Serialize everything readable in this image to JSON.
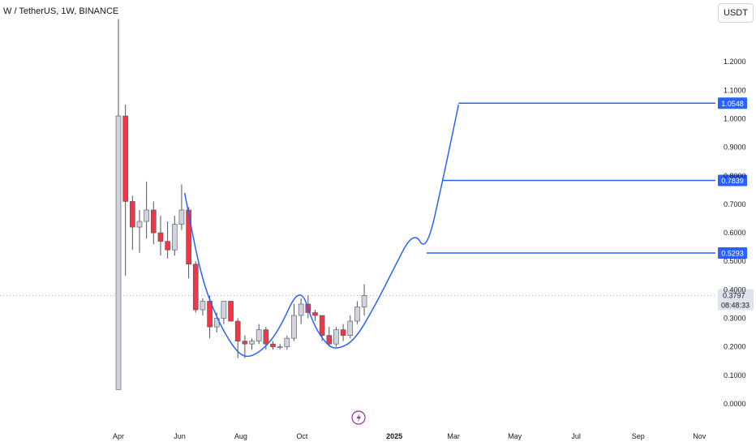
{
  "header": {
    "title": "W / TetherUS, 1W, BINANCE",
    "unit": "USDT"
  },
  "colors": {
    "up": "#d1d4dc",
    "up_border": "#50535e",
    "down": "#f23645",
    "down_border": "#50535e",
    "line": "#2962ff",
    "axis_text": "#131722",
    "lightning": "#9c27b0"
  },
  "icons": {
    "replay": "lightning-icon"
  },
  "chart_data": {
    "type": "candlestick",
    "title": "W / TetherUS, 1W, BINANCE",
    "ylim": [
      -0.02,
      1.36
    ],
    "y_ticks": [
      "1.2000",
      "1.1000",
      "1.0000",
      "0.9000",
      "0.8000",
      "0.7000",
      "0.6000",
      "0.5000",
      "0.4000",
      "0.3000",
      "0.2000",
      "0.1000",
      "0.0000"
    ],
    "y_tick_values": [
      1.2,
      1.1,
      1.0,
      0.9,
      0.8,
      0.7,
      0.6,
      0.5,
      0.4,
      0.3,
      0.2,
      0.1,
      0.0
    ],
    "x_ticks": [
      {
        "label": "Apr",
        "date": "2024-04-01"
      },
      {
        "label": "Jun",
        "date": "2024-06-01"
      },
      {
        "label": "Aug",
        "date": "2024-08-01"
      },
      {
        "label": "Oct",
        "date": "2024-10-01"
      },
      {
        "label": "2025",
        "date": "2025-01-01",
        "bold": true
      },
      {
        "label": "Mar",
        "date": "2025-03-01"
      },
      {
        "label": "May",
        "date": "2025-05-01"
      },
      {
        "label": "Jul",
        "date": "2025-07-01"
      },
      {
        "label": "Sep",
        "date": "2025-09-01"
      },
      {
        "label": "Nov",
        "date": "2025-11-01"
      }
    ],
    "candles": [
      {
        "date": "2024-04-01",
        "o": 0.05,
        "h": 1.35,
        "l": 0.05,
        "c": 1.01
      },
      {
        "date": "2024-04-08",
        "o": 1.01,
        "h": 1.05,
        "l": 0.45,
        "c": 0.71
      },
      {
        "date": "2024-04-15",
        "o": 0.71,
        "h": 0.73,
        "l": 0.54,
        "c": 0.62
      },
      {
        "date": "2024-04-22",
        "o": 0.62,
        "h": 0.68,
        "l": 0.53,
        "c": 0.64
      },
      {
        "date": "2024-04-29",
        "o": 0.64,
        "h": 0.78,
        "l": 0.58,
        "c": 0.68
      },
      {
        "date": "2024-05-06",
        "o": 0.68,
        "h": 0.71,
        "l": 0.56,
        "c": 0.6
      },
      {
        "date": "2024-05-13",
        "o": 0.6,
        "h": 0.66,
        "l": 0.52,
        "c": 0.57
      },
      {
        "date": "2024-05-20",
        "o": 0.57,
        "h": 0.64,
        "l": 0.51,
        "c": 0.54
      },
      {
        "date": "2024-05-27",
        "o": 0.54,
        "h": 0.66,
        "l": 0.52,
        "c": 0.63
      },
      {
        "date": "2024-06-03",
        "o": 0.63,
        "h": 0.77,
        "l": 0.61,
        "c": 0.68
      },
      {
        "date": "2024-06-10",
        "o": 0.68,
        "h": 0.69,
        "l": 0.44,
        "c": 0.49
      },
      {
        "date": "2024-06-17",
        "o": 0.49,
        "h": 0.5,
        "l": 0.32,
        "c": 0.33
      },
      {
        "date": "2024-06-24",
        "o": 0.33,
        "h": 0.37,
        "l": 0.31,
        "c": 0.36
      },
      {
        "date": "2024-07-01",
        "o": 0.36,
        "h": 0.38,
        "l": 0.23,
        "c": 0.27
      },
      {
        "date": "2024-07-08",
        "o": 0.27,
        "h": 0.32,
        "l": 0.25,
        "c": 0.3
      },
      {
        "date": "2024-07-15",
        "o": 0.3,
        "h": 0.36,
        "l": 0.28,
        "c": 0.36
      },
      {
        "date": "2024-07-22",
        "o": 0.36,
        "h": 0.36,
        "l": 0.29,
        "c": 0.29
      },
      {
        "date": "2024-07-29",
        "o": 0.29,
        "h": 0.3,
        "l": 0.16,
        "c": 0.22
      },
      {
        "date": "2024-08-05",
        "o": 0.22,
        "h": 0.24,
        "l": 0.16,
        "c": 0.21
      },
      {
        "date": "2024-08-12",
        "o": 0.21,
        "h": 0.23,
        "l": 0.19,
        "c": 0.22
      },
      {
        "date": "2024-08-19",
        "o": 0.22,
        "h": 0.28,
        "l": 0.21,
        "c": 0.26
      },
      {
        "date": "2024-08-26",
        "o": 0.26,
        "h": 0.27,
        "l": 0.19,
        "c": 0.21
      },
      {
        "date": "2024-09-02",
        "o": 0.21,
        "h": 0.22,
        "l": 0.19,
        "c": 0.2
      },
      {
        "date": "2024-09-09",
        "o": 0.2,
        "h": 0.21,
        "l": 0.19,
        "c": 0.2
      },
      {
        "date": "2024-09-16",
        "o": 0.2,
        "h": 0.24,
        "l": 0.19,
        "c": 0.23
      },
      {
        "date": "2024-09-23",
        "o": 0.23,
        "h": 0.35,
        "l": 0.22,
        "c": 0.31
      },
      {
        "date": "2024-09-30",
        "o": 0.31,
        "h": 0.37,
        "l": 0.28,
        "c": 0.35
      },
      {
        "date": "2024-10-07",
        "o": 0.35,
        "h": 0.38,
        "l": 0.3,
        "c": 0.32
      },
      {
        "date": "2024-10-14",
        "o": 0.32,
        "h": 0.33,
        "l": 0.29,
        "c": 0.31
      },
      {
        "date": "2024-10-21",
        "o": 0.31,
        "h": 0.31,
        "l": 0.22,
        "c": 0.24
      },
      {
        "date": "2024-10-28",
        "o": 0.24,
        "h": 0.27,
        "l": 0.2,
        "c": 0.21
      },
      {
        "date": "2024-11-04",
        "o": 0.21,
        "h": 0.27,
        "l": 0.2,
        "c": 0.26
      },
      {
        "date": "2024-11-11",
        "o": 0.26,
        "h": 0.28,
        "l": 0.22,
        "c": 0.24
      },
      {
        "date": "2024-11-18",
        "o": 0.24,
        "h": 0.31,
        "l": 0.23,
        "c": 0.29
      },
      {
        "date": "2024-11-25",
        "o": 0.29,
        "h": 0.36,
        "l": 0.28,
        "c": 0.34
      },
      {
        "date": "2024-12-02",
        "o": 0.34,
        "h": 0.42,
        "l": 0.31,
        "c": 0.38
      }
    ],
    "levels": [
      {
        "value": 1.0548,
        "label": "1.0548",
        "from_date": "2025-03-06"
      },
      {
        "value": 0.7839,
        "label": "0.7839",
        "from_date": "2025-02-18"
      },
      {
        "value": 0.5293,
        "label": "0.5293",
        "from_date": "2025-02-02"
      }
    ],
    "current": {
      "price": 0.3797,
      "label": "0.3797",
      "countdown": "08:48:33"
    },
    "drawing_path": [
      {
        "date": "2024-06-06",
        "v": 0.74
      },
      {
        "date": "2024-06-22",
        "v": 0.45
      },
      {
        "date": "2024-07-08",
        "v": 0.3
      },
      {
        "date": "2024-07-24",
        "v": 0.2
      },
      {
        "date": "2024-08-05",
        "v": 0.16
      },
      {
        "date": "2024-08-20",
        "v": 0.18
      },
      {
        "date": "2024-09-07",
        "v": 0.25
      },
      {
        "date": "2024-09-29",
        "v": 0.42
      },
      {
        "date": "2024-10-12",
        "v": 0.28
      },
      {
        "date": "2024-10-25",
        "v": 0.21
      },
      {
        "date": "2024-11-04",
        "v": 0.19
      },
      {
        "date": "2024-11-22",
        "v": 0.22
      },
      {
        "date": "2024-12-12",
        "v": 0.34
      },
      {
        "date": "2024-12-28",
        "v": 0.45
      },
      {
        "date": "2025-01-20",
        "v": 0.61
      },
      {
        "date": "2025-02-02",
        "v": 0.53
      },
      {
        "date": "2025-02-18",
        "v": 0.78
      },
      {
        "date": "2025-03-06",
        "v": 1.05
      }
    ]
  }
}
